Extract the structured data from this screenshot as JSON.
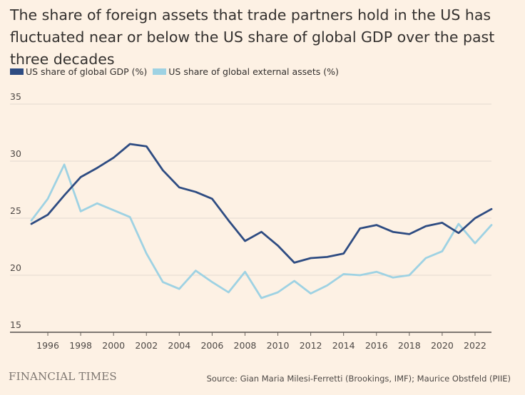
{
  "title": "The share of foreign assets that trade partners hold in the US has fluctuated near or below the US share of global GDP over the past three decades",
  "brand": "FINANCIAL TIMES",
  "source": "Source: Gian Maria Milesi-Ferretti (Brookings, IMF); Maurice Obstfeld (PIIE)",
  "chart_data": {
    "type": "line",
    "title": "The share of foreign assets that trade partners hold in the US has fluctuated near or below the US share of global GDP over the past three decades",
    "xlabel": "",
    "ylabel": "",
    "xlim": [
      1995,
      2023
    ],
    "ylim": [
      15,
      35
    ],
    "yticks": [
      15,
      20,
      25,
      30,
      35
    ],
    "xticks": [
      1996,
      1998,
      2000,
      2002,
      2004,
      2006,
      2008,
      2010,
      2012,
      2014,
      2016,
      2018,
      2020,
      2022
    ],
    "grid": true,
    "legend_position": "top-left",
    "x": [
      1995,
      1996,
      1997,
      1998,
      1999,
      2000,
      2001,
      2002,
      2003,
      2004,
      2005,
      2006,
      2007,
      2008,
      2009,
      2010,
      2011,
      2012,
      2013,
      2014,
      2015,
      2016,
      2017,
      2018,
      2019,
      2020,
      2021,
      2022,
      2023
    ],
    "series": [
      {
        "name": "US share of global GDP (%)",
        "color": "#2e4c82",
        "values": [
          24.5,
          25.3,
          27.0,
          28.6,
          29.4,
          30.3,
          31.5,
          31.3,
          29.2,
          27.7,
          27.3,
          26.7,
          24.8,
          23.0,
          23.8,
          22.6,
          21.1,
          21.5,
          21.6,
          21.9,
          24.1,
          24.4,
          23.8,
          23.6,
          24.3,
          24.6,
          23.7,
          25.0,
          25.8
        ]
      },
      {
        "name": "US share of global external assets (%)",
        "color": "#9ed2e3",
        "values": [
          24.8,
          26.7,
          29.7,
          25.6,
          26.3,
          25.7,
          25.1,
          21.9,
          19.4,
          18.8,
          20.4,
          19.4,
          18.5,
          20.3,
          18.0,
          18.5,
          19.5,
          18.4,
          19.1,
          20.1,
          20.0,
          20.3,
          19.8,
          20.0,
          21.5,
          22.1,
          24.5,
          22.8,
          24.4
        ]
      }
    ]
  }
}
